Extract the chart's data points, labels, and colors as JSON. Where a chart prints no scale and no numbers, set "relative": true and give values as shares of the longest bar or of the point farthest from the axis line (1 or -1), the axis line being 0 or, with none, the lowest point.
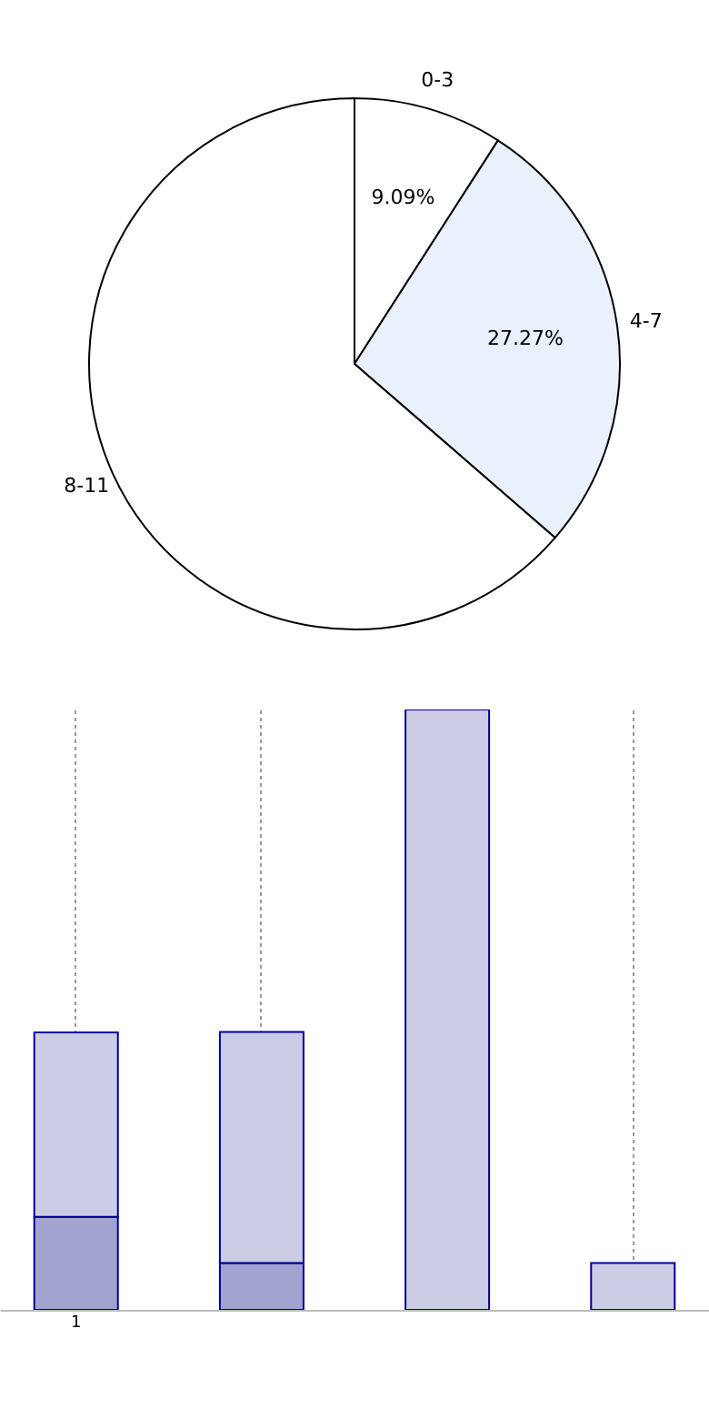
{
  "chart_data": [
    {
      "type": "pie",
      "categories": [
        "0-3",
        "4-7",
        "8-11"
      ],
      "values": [
        9.09,
        27.27,
        63.64
      ],
      "colors": [
        "#ffffff",
        "#eaf0fc",
        "#ffffff"
      ],
      "value_labels": [
        "9.09%",
        "27.27%",
        null
      ],
      "legend": false
    },
    {
      "type": "bar",
      "relative": true,
      "stacked": true,
      "categories": [
        "1",
        null,
        null,
        null
      ],
      "grid": "x",
      "legend": false,
      "series": [
        {
          "color": "#a3a3d0",
          "values": [
            0.155,
            0.078,
            null,
            null
          ]
        },
        {
          "color": "#ccccE4",
          "values": [
            0.307,
            0.385,
            1,
            0.078
          ]
        }
      ]
    }
  ]
}
